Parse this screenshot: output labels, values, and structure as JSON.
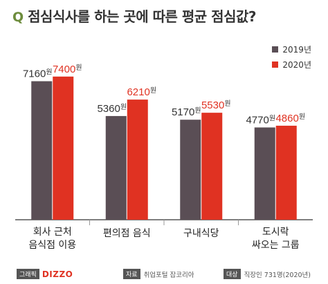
{
  "header": {
    "q_mark": "Q",
    "title": "점심식사를 하는 곳에 따른 평균 점심값?"
  },
  "legend": [
    {
      "label": "2019년",
      "color": "#5a4e55"
    },
    {
      "label": "2020년",
      "color": "#e03222"
    }
  ],
  "chart_data": {
    "type": "bar",
    "categories": [
      "회사 근처\n음식점 이용",
      "편의점 음식",
      "구내식당",
      "도시락\n싸오는 그룹"
    ],
    "series": [
      {
        "name": "2019년",
        "color": "#5a4e55",
        "values": [
          7160,
          5360,
          5170,
          4770
        ],
        "labels": [
          "7160원",
          "5360원",
          "5170원",
          "4770원"
        ]
      },
      {
        "name": "2020년",
        "color": "#e03222",
        "values": [
          7400,
          6210,
          5530,
          4860
        ],
        "labels": [
          "7400원",
          "6210원",
          "5530원",
          "4860원"
        ]
      }
    ],
    "title": "점심식사를 하는 곳에 따른 평균 점심값?",
    "ylim": [
      0,
      8500
    ],
    "grid": false,
    "legend_position": "top-right"
  },
  "footer": {
    "brand_tag": "그래픽",
    "brand_logo": "DIZZO",
    "source_tag": "자료",
    "source_text": "취업포털 잡코리아",
    "target_tag": "대상",
    "target_text": "직장인 731명(2020년)"
  }
}
